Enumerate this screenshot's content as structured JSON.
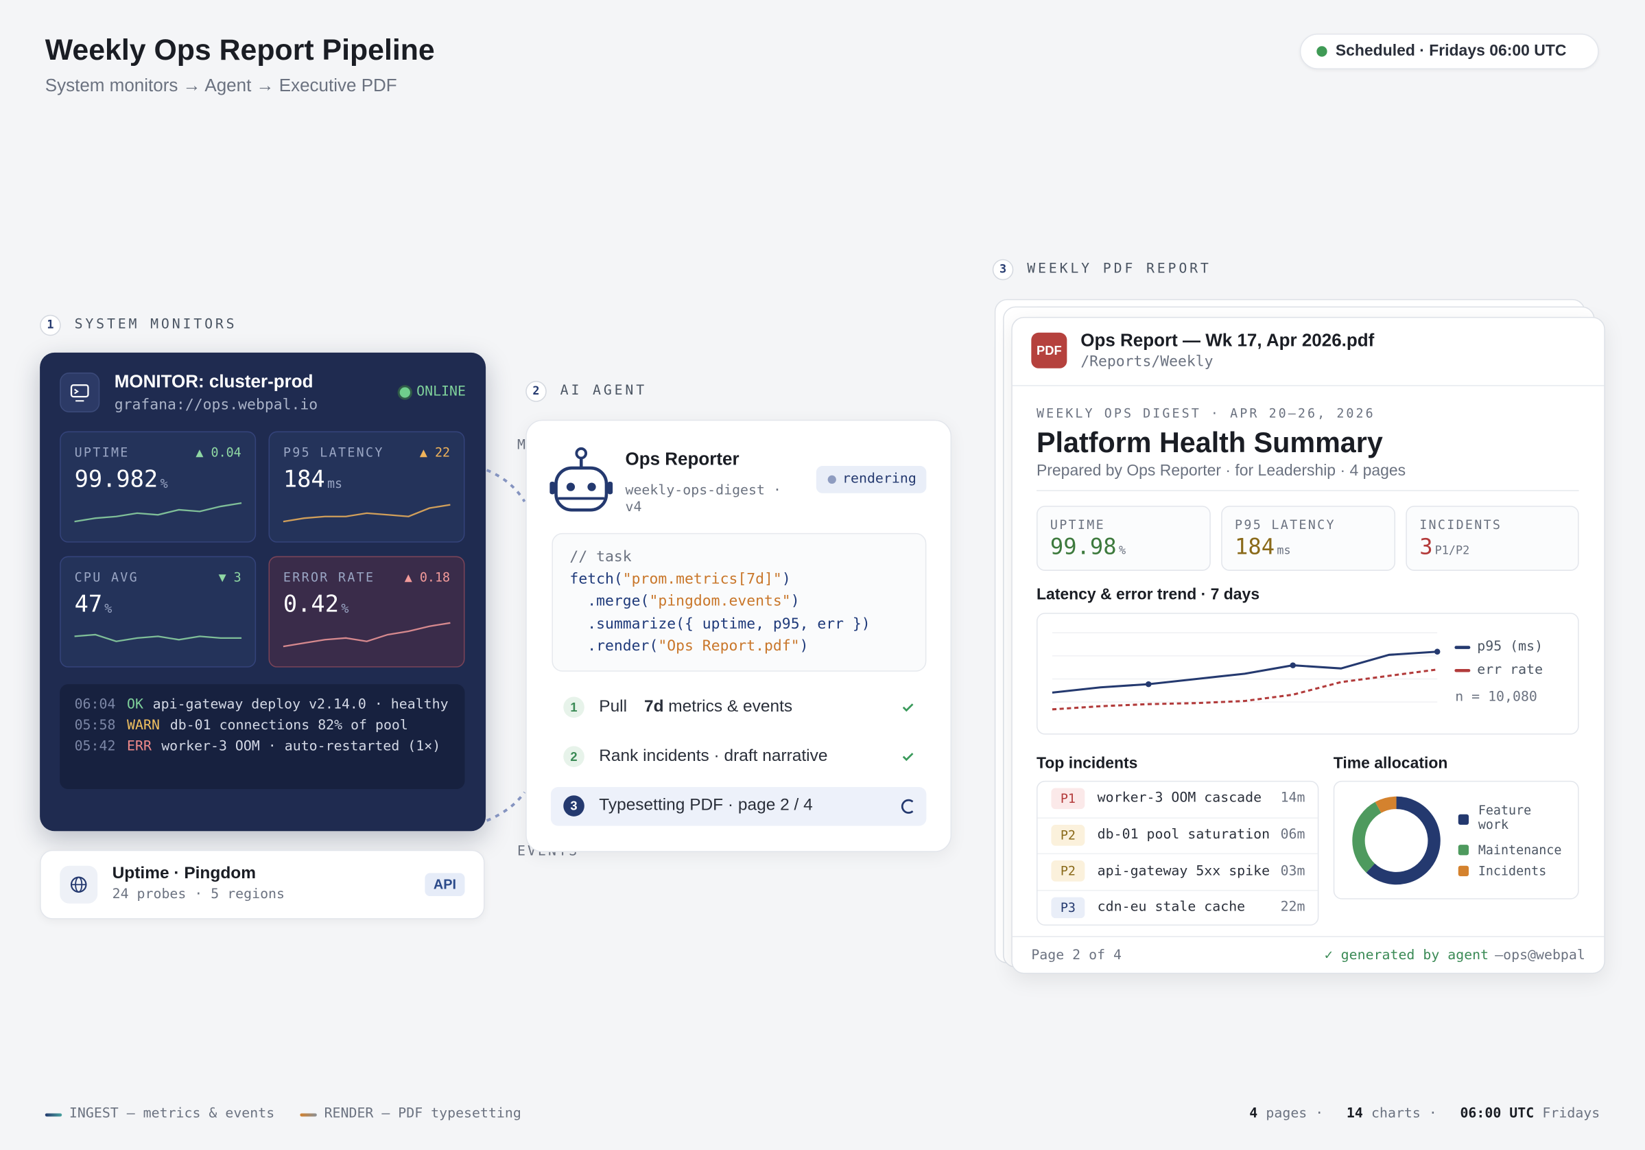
{
  "header": {
    "title": "Weekly Ops Report Pipeline",
    "subtitle": "System monitors → Agent → Executive PDF",
    "schedule": "Scheduled · Fridays 06:00 UTC"
  },
  "monitors": {
    "step": "1",
    "label": "SYSTEM MONITORS",
    "title": "MONITOR: cluster-prod",
    "url": "grafana://ops.webpal.io",
    "status": "ONLINE",
    "metrics": [
      {
        "label": "UPTIME",
        "delta": "▲ 0.04",
        "value": "99.982",
        "unit": "%"
      },
      {
        "label": "P95 LATENCY",
        "delta": "▲ 22",
        "value": "184",
        "unit": "ms"
      },
      {
        "label": "CPU AVG",
        "delta": "▼ 3",
        "value": "47",
        "unit": "%"
      },
      {
        "label": "ERROR RATE",
        "delta": "▲ 0.18",
        "value": "0.42",
        "unit": "%"
      }
    ],
    "logs": [
      {
        "time": "06:04",
        "level": "OK",
        "msg": "api-gateway deploy v2.14.0 · healthy"
      },
      {
        "time": "05:58",
        "level": "WARN",
        "msg": "db-01 connections 82% of pool"
      },
      {
        "time": "05:42",
        "level": "ERR",
        "msg": "worker-3 OOM · auto-restarted (1×)"
      }
    ],
    "pingdom": {
      "title": "Uptime · Pingdom",
      "sub": "24 probes · 5 regions",
      "badge": "API"
    }
  },
  "connectors": {
    "top": "METRICS",
    "bottom": "EVENTS"
  },
  "agent": {
    "step": "2",
    "label": "AI AGENT",
    "name": "Ops Reporter",
    "id": "weekly-ops-digest · v4",
    "status": "rendering",
    "code": [
      [
        "// task"
      ],
      [
        "fetch(",
        "\"prom.metrics[7d]\"",
        ")"
      ],
      [
        "  .merge(",
        "\"pingdom.events\"",
        ")"
      ],
      [
        "  .summarize({ uptime, p95, err })"
      ],
      [
        "  .render(",
        "\"Ops Report.pdf\"",
        ")"
      ]
    ],
    "steps": [
      {
        "n": "1",
        "parts": [
          "Pull ",
          "7d",
          " metrics & events"
        ]
      },
      {
        "n": "2",
        "parts": [
          "Rank incidents · draft narrative"
        ]
      },
      {
        "n": "3",
        "parts": [
          "Typesetting PDF · page 2 / 4"
        ]
      }
    ]
  },
  "report": {
    "step": "3",
    "label": "WEEKLY PDF REPORT",
    "icon": "PDF",
    "file": "Ops Report — Wk 17, Apr 2026.pdf",
    "path": "/Reports/Weekly",
    "eyebrow": "WEEKLY OPS DIGEST · APR 20–26, 2026",
    "title": "Platform Health Summary",
    "sub": "Prepared by Ops Reporter · for Leadership · 4 pages",
    "kpis": [
      {
        "label": "UPTIME",
        "value": "99.98",
        "unit": "%"
      },
      {
        "label": "P95 LATENCY",
        "value": "184",
        "unit": "ms"
      },
      {
        "label": "INCIDENTS",
        "value": "3",
        "unit": "P1/P2"
      }
    ],
    "incidents_title": "Top incidents",
    "incidents": [
      {
        "sev": "P1",
        "name": "worker-3 OOM cascade",
        "dur": "14m"
      },
      {
        "sev": "P2",
        "name": "db-01 pool saturation",
        "dur": "06m"
      },
      {
        "sev": "P2",
        "name": "api-gateway 5xx spike",
        "dur": "03m"
      },
      {
        "sev": "P3",
        "name": "cdn-eu stale cache",
        "dur": "22m"
      }
    ],
    "footer": {
      "page": "Page 2 of 4",
      "generated": "✓ generated by agent",
      "by": "—ops@webpal"
    }
  },
  "chart_data": [
    {
      "type": "line",
      "title": "Latency & error trend · 7 days",
      "ylim": [
        0,
        100
      ],
      "annotation": "n = 10,080",
      "series": [
        {
          "name": "p95 (ms)",
          "color": "#24396f",
          "values": [
            30,
            35,
            38,
            43,
            48,
            56,
            53,
            66,
            69
          ]
        },
        {
          "name": "err rate",
          "color": "#b23b3b",
          "values": [
            14,
            17,
            19,
            20,
            22,
            28,
            40,
            46,
            52
          ]
        }
      ]
    },
    {
      "type": "pie",
      "title": "Time allocation",
      "categories": [
        "Feature work",
        "Maintenance",
        "Incidents"
      ],
      "values": [
        62,
        30,
        8
      ],
      "colors": [
        "#24396f",
        "#4e9a5e",
        "#d4822e"
      ]
    }
  ],
  "legend": {
    "ingest": "INGEST — metrics & events",
    "render": "RENDER — PDF typesetting"
  },
  "stats": [
    {
      "value": "4",
      "label": "pages ·"
    },
    {
      "value": "14",
      "label": "charts ·"
    },
    {
      "value": "06:00 UTC",
      "label": "Fridays"
    }
  ]
}
